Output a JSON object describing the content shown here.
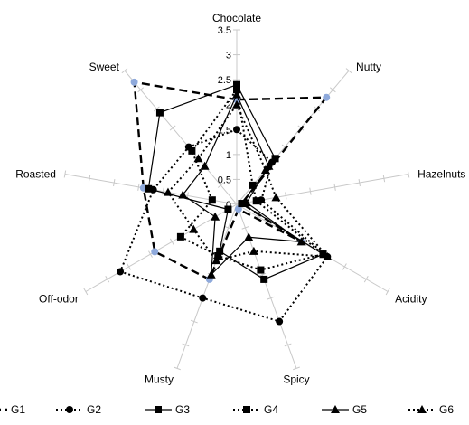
{
  "chart_data": {
    "type": "radar",
    "title": "",
    "axes": [
      "Chocolate",
      "Nutty",
      "Hazelnuts",
      "Acidity",
      "Spicy",
      "Musty",
      "Off-odor",
      "Roasted",
      "Sweet"
    ],
    "rlim": [
      0,
      3.5
    ],
    "ticks": [
      0,
      0.5,
      1,
      1.5,
      2,
      2.5,
      3,
      3.5
    ],
    "tick_labels": [
      "0",
      "0.5",
      "1",
      "1.5",
      "2",
      "2.5",
      "3",
      "3.5"
    ],
    "grid": "radial spokes only, no rings",
    "legend_position": "bottom",
    "series": [
      {
        "name": "G1",
        "color": "#8EA9DB",
        "line": "dashed-bold",
        "marker": "circle",
        "values": [
          2.1,
          2.8,
          0.1,
          1.5,
          0.1,
          1.6,
          1.9,
          1.9,
          3.2
        ]
      },
      {
        "name": "G2",
        "color": "#000000",
        "line": "dotted",
        "marker": "circle",
        "values": [
          1.5,
          1.1,
          0.5,
          2.1,
          2.5,
          2.0,
          2.7,
          1.7,
          1.5
        ]
      },
      {
        "name": "G3",
        "color": "#000000",
        "line": "solid",
        "marker": "square",
        "values": [
          2.4,
          1.2,
          0.1,
          2.0,
          1.6,
          1.0,
          0.2,
          1.8,
          2.4
        ]
      },
      {
        "name": "G4",
        "color": "#000000",
        "line": "dotted",
        "marker": "square",
        "values": [
          2.3,
          0.5,
          0.4,
          2.0,
          1.4,
          1.1,
          1.3,
          0.5,
          1.4
        ]
      },
      {
        "name": "G5",
        "color": "#000000",
        "line": "solid",
        "marker": "triangle",
        "values": [
          2.2,
          1.0,
          0.2,
          1.5,
          0.7,
          1.5,
          0.5,
          1.1,
          1.0
        ]
      },
      {
        "name": "G6",
        "color": "#000000",
        "line": "dotted",
        "marker": "triangle",
        "values": [
          2.0,
          0.9,
          0.8,
          2.1,
          1.0,
          1.2,
          1.0,
          1.4,
          1.2
        ]
      }
    ]
  }
}
